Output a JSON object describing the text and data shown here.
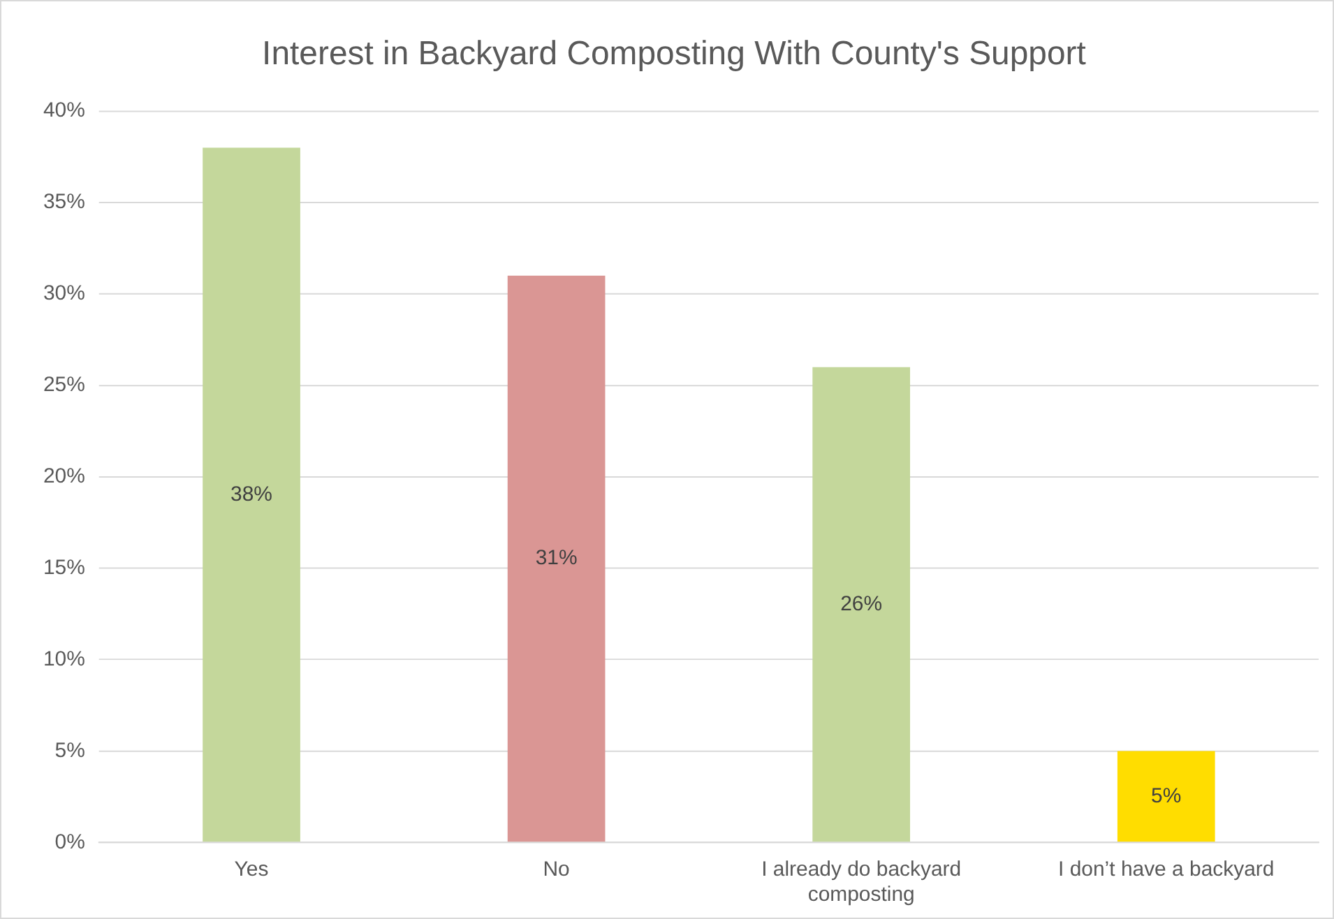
{
  "chart_data": {
    "type": "bar",
    "title": "Interest in Backyard Composting With County's Support",
    "categories": [
      "Yes",
      "No",
      "I already do backyard composting",
      "I don’t have a backyard"
    ],
    "values": [
      38,
      31,
      26,
      5
    ],
    "colors": [
      "#c4d79b",
      "#da9694",
      "#c4d79b",
      "#ffdd00"
    ],
    "value_labels": [
      "38%",
      "31%",
      "26%",
      "5%"
    ],
    "ylim": [
      0,
      40
    ],
    "yticks": [
      {
        "value": 0,
        "label": "0%"
      },
      {
        "value": 5,
        "label": "5%"
      },
      {
        "value": 10,
        "label": "10%"
      },
      {
        "value": 15,
        "label": "15%"
      },
      {
        "value": 20,
        "label": "20%"
      },
      {
        "value": 25,
        "label": "25%"
      },
      {
        "value": 30,
        "label": "30%"
      },
      {
        "value": 35,
        "label": "35%"
      },
      {
        "value": 40,
        "label": "40%"
      }
    ],
    "grid": "y",
    "legend": false
  }
}
